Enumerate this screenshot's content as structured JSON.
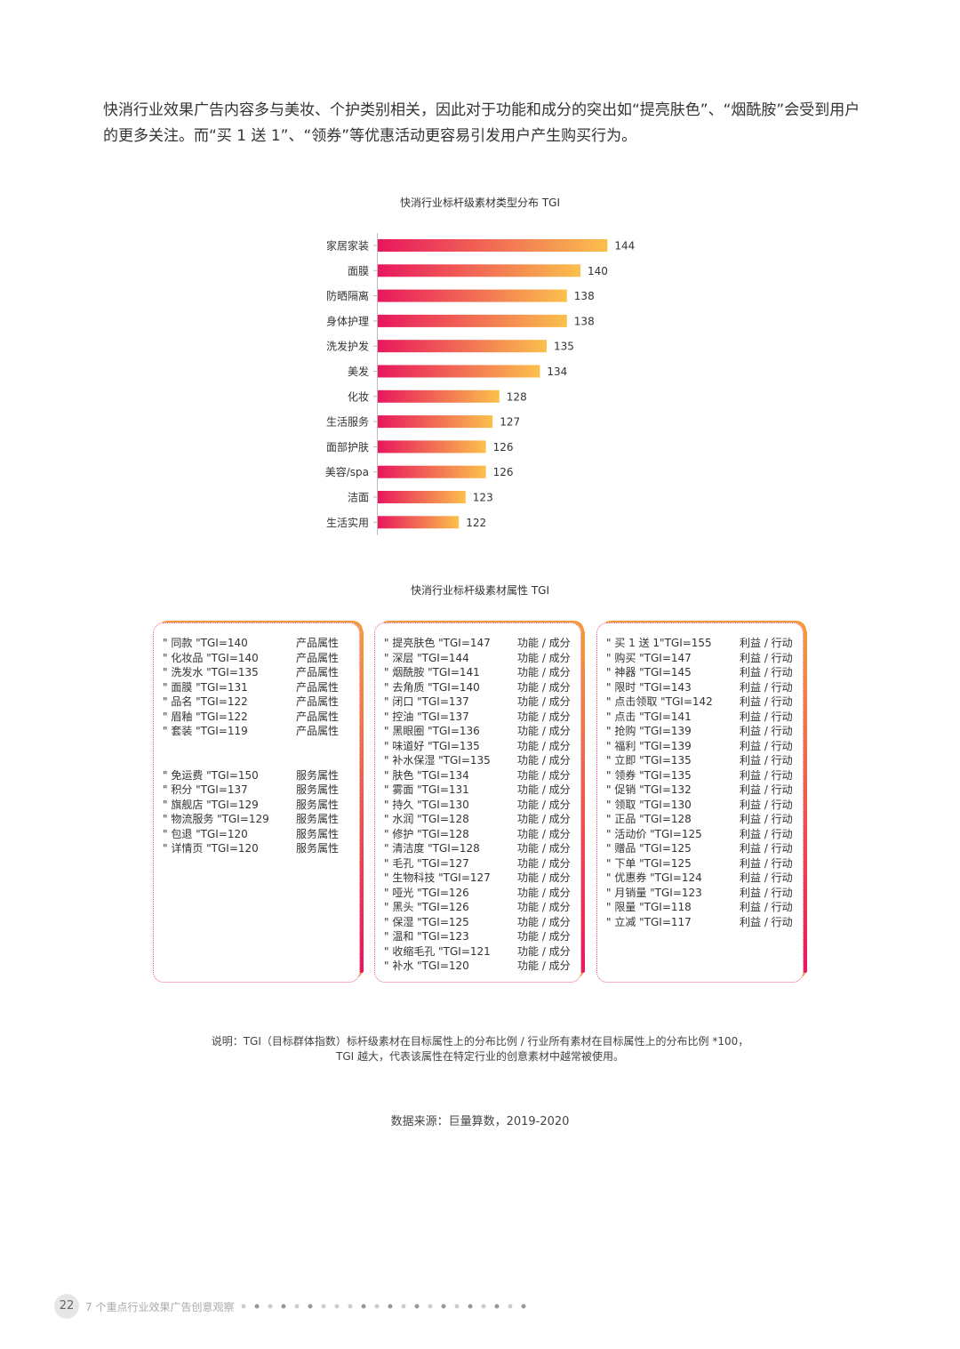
{
  "intro": "快消行业效果广告内容多与美妆、个护类别相关，因此对于功能和成分的突出如“提亮肤色”、“烟酰胺”会受到用户的更多关注。而“买 1 送 1”、“领券”等优惠活动更容易引发用户产生购买行为。",
  "chart_data": {
    "type": "bar",
    "orientation": "horizontal",
    "title": "快消行业标杆级素材类型分布 TGI",
    "categories": [
      "家居家装",
      "面膜",
      "防晒隔离",
      "身体护理",
      "洗发护发",
      "美发",
      "化妆",
      "生活服务",
      "面部护肤",
      "美容/spa",
      "洁面",
      "生活实用"
    ],
    "values": [
      144,
      140,
      138,
      138,
      135,
      134,
      128,
      127,
      126,
      126,
      123,
      122
    ],
    "xlim": [
      110,
      146
    ],
    "gradient": [
      "#e8175d",
      "#fbc04c"
    ]
  },
  "attributes": {
    "title": "快消行业标杆级素材属性 TGI",
    "boxes": [
      {
        "groups": [
          {
            "rows": [
              [
                "\" 同款 \"TGI=140",
                "产品属性"
              ],
              [
                "\" 化妆品 \"TGI=140",
                "产品属性"
              ],
              [
                "\" 洗发水 \"TGI=135",
                "产品属性"
              ],
              [
                "\" 面膜 \"TGI=131",
                "产品属性"
              ],
              [
                "\" 品名 \"TGI=122",
                "产品属性"
              ],
              [
                "\" 眉釉 \"TGI=122",
                "产品属性"
              ],
              [
                "\" 套装 \"TGI=119",
                "产品属性"
              ]
            ]
          },
          {
            "rows": [
              [
                "\" 免运费 \"TGI=150",
                "服务属性"
              ],
              [
                "\" 积分 \"TGI=137",
                "服务属性"
              ],
              [
                "\" 旗舰店 \"TGI=129",
                "服务属性"
              ],
              [
                "\" 物流服务 \"TGI=129",
                "服务属性"
              ],
              [
                "\" 包退 \"TGI=120",
                "服务属性"
              ],
              [
                "\" 详情页 \"TGI=120",
                "服务属性"
              ]
            ]
          }
        ]
      },
      {
        "groups": [
          {
            "rows": [
              [
                "\" 提亮肤色 \"TGI=147",
                "功能 / 成分"
              ],
              [
                "\" 深层 \"TGI=144",
                "功能 / 成分"
              ],
              [
                "\" 烟酰胺 \"TGI=141",
                "功能 / 成分"
              ],
              [
                "\" 去角质 \"TGI=140",
                "功能 / 成分"
              ],
              [
                "\" 闭口 \"TGI=137",
                "功能 / 成分"
              ],
              [
                "\" 控油 \"TGI=137",
                "功能 / 成分"
              ],
              [
                "\" 黑眼圈 \"TGI=136",
                "功能 / 成分"
              ],
              [
                "\" 味道好 \"TGI=135",
                "功能 / 成分"
              ],
              [
                "\" 补水保湿 \"TGI=135",
                "功能 / 成分"
              ],
              [
                "\" 肤色 \"TGI=134",
                "功能 / 成分"
              ],
              [
                "\" 雾面 \"TGI=131",
                "功能 / 成分"
              ],
              [
                "\" 持久 \"TGI=130",
                "功能 / 成分"
              ],
              [
                "\" 水润 \"TGI=128",
                "功能 / 成分"
              ],
              [
                "\" 修护 \"TGI=128",
                "功能 / 成分"
              ],
              [
                "\" 清洁度 \"TGI=128",
                "功能 / 成分"
              ],
              [
                "\" 毛孔 \"TGI=127",
                "功能 / 成分"
              ],
              [
                "\" 生物科技 \"TGI=127",
                "功能 / 成分"
              ],
              [
                "\" 哑光 \"TGI=126",
                "功能 / 成分"
              ],
              [
                "\" 黑头 \"TGI=126",
                "功能 / 成分"
              ],
              [
                "\" 保湿 \"TGI=125",
                "功能 / 成分"
              ],
              [
                "\" 温和 \"TGI=123",
                "功能 / 成分"
              ],
              [
                "\" 收缩毛孔 \"TGI=121",
                "功能 / 成分"
              ],
              [
                "\" 补水 \"TGI=120",
                "功能 / 成分"
              ]
            ]
          }
        ]
      },
      {
        "groups": [
          {
            "rows": [
              [
                "\" 买 1 送 1\"TGI=155",
                "利益 / 行动"
              ],
              [
                "\" 购买 \"TGI=147",
                "利益 / 行动"
              ],
              [
                "\" 神器 \"TGI=145",
                "利益 / 行动"
              ],
              [
                "\" 限时 \"TGI=143",
                "利益 / 行动"
              ],
              [
                "\" 点击领取 \"TGI=142",
                "利益 / 行动"
              ],
              [
                "\" 点击 \"TGI=141",
                "利益 / 行动"
              ],
              [
                "\" 抢购 \"TGI=139",
                "利益 / 行动"
              ],
              [
                "\" 福利 \"TGI=139",
                "利益 / 行动"
              ],
              [
                "\" 立即 \"TGI=135",
                "利益 / 行动"
              ],
              [
                "\" 领券 \"TGI=135",
                "利益 / 行动"
              ],
              [
                "\" 促销 \"TGI=132",
                "利益 / 行动"
              ],
              [
                "\" 领取 \"TGI=130",
                "利益 / 行动"
              ],
              [
                "\" 正品 \"TGI=128",
                "利益 / 行动"
              ],
              [
                "\" 活动价 \"TGI=125",
                "利益 / 行动"
              ],
              [
                "\" 赠品 \"TGI=125",
                "利益 / 行动"
              ],
              [
                "\" 下单 \"TGI=125",
                "利益 / 行动"
              ],
              [
                "\" 优惠券 \"TGI=124",
                "利益 / 行动"
              ],
              [
                "\" 月销量 \"TGI=123",
                "利益 / 行动"
              ],
              [
                "\" 限量 \"TGI=118",
                "利益 / 行动"
              ],
              [
                "\" 立减 \"TGI=117",
                "利益 / 行动"
              ]
            ]
          }
        ]
      }
    ]
  },
  "note": [
    "说明：TGI（目标群体指数）标杆级素材在目标属性上的分布比例 / 行业所有素材在目标属性上的分布比例 *100，",
    "TGI 越大，代表该属性在特定行业的创意素材中越常被使用。"
  ],
  "source": "数据来源：巨量算数，2019-2020",
  "footer": {
    "page": "22",
    "title": "7 个重点行业效果广告创意观察"
  }
}
